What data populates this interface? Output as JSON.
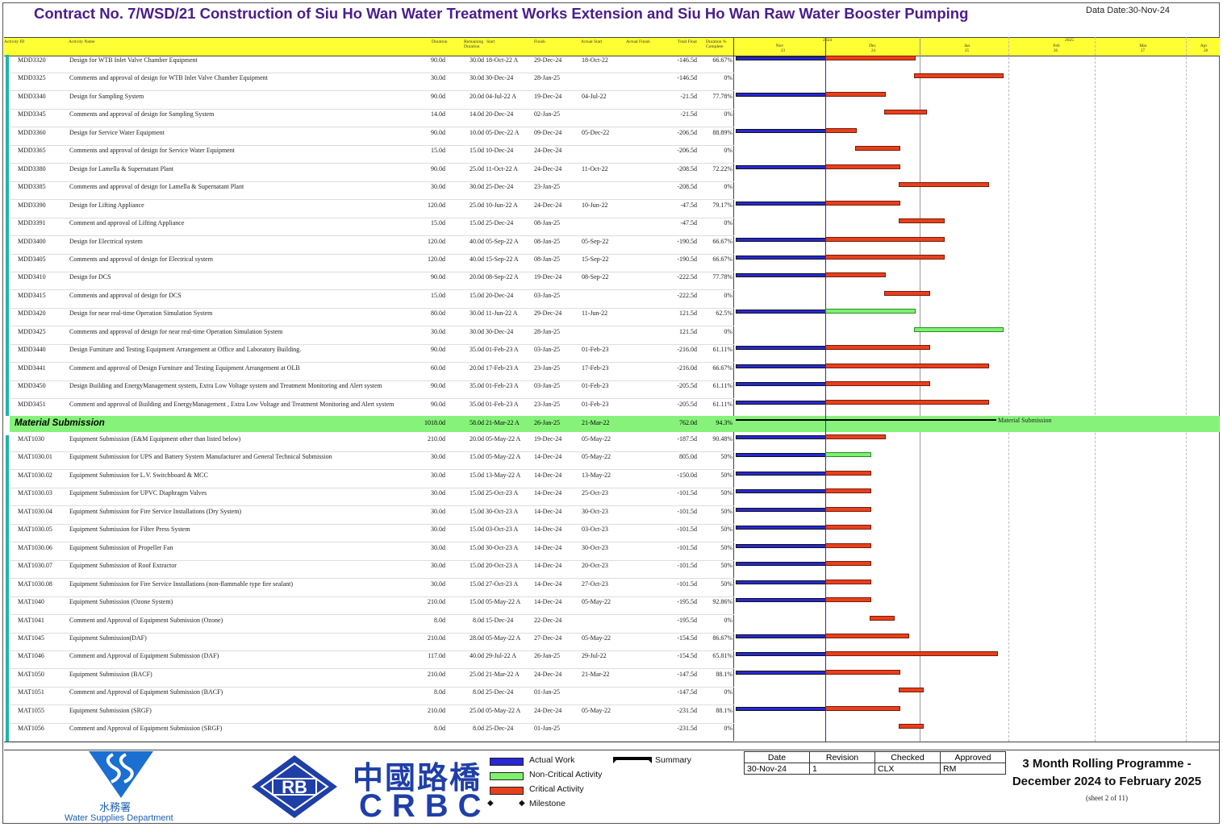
{
  "header": {
    "title": "Contract No. 7/WSD/21 Construction of Siu Ho Wan Water Treatment Works Extension and Siu Ho Wan Raw Water Booster Pumping",
    "data_date": "Data Date:30-Nov-24"
  },
  "columns": {
    "activity_id": "Activity ID",
    "activity_name": "Activity Name",
    "duration": "Duration",
    "remaining_duration": "Remaining Duration",
    "start": "Start",
    "finish": "Finish",
    "actual_start": "Actual Start",
    "actual_finish": "Actual Finish",
    "total_float": "Total Float",
    "duration_pct": "Duration % Complete"
  },
  "timeline": {
    "years": [
      "2024",
      "2025"
    ],
    "months": [
      "Nov",
      "Dec",
      "Jan",
      "Feb",
      "Mar",
      "Apr"
    ],
    "weeks": [
      "23",
      "24",
      "25",
      "26",
      "27",
      "28"
    ]
  },
  "rows": [
    {
      "id": "MDD3320",
      "name": "Design for WTB Inlet Valve Chamber Equipment",
      "dur": "90.0d",
      "rem": "30.0d",
      "start": "18-Oct-22 A",
      "finish": "29-Dec-24",
      "astart": "18-Oct-22",
      "afinish": "",
      "float": "-146.5d",
      "pct": "66.67%"
    },
    {
      "id": "MDD3325",
      "name": "Comments and approval of design for WTB Inlet Valve Chamber Equipment",
      "dur": "30.0d",
      "rem": "30.0d",
      "start": "30-Dec-24",
      "finish": "28-Jan-25",
      "astart": "",
      "afinish": "",
      "float": "-146.5d",
      "pct": "0%"
    },
    {
      "id": "MDD3340",
      "name": "Design for Sampling System",
      "dur": "90.0d",
      "rem": "20.0d",
      "start": "04-Jul-22 A",
      "finish": "19-Dec-24",
      "astart": "04-Jul-22",
      "afinish": "",
      "float": "-21.5d",
      "pct": "77.78%"
    },
    {
      "id": "MDD3345",
      "name": "Comments and approval of design for Sampling System",
      "dur": "14.0d",
      "rem": "14.0d",
      "start": "20-Dec-24",
      "finish": "02-Jan-25",
      "astart": "",
      "afinish": "",
      "float": "-21.5d",
      "pct": "0%"
    },
    {
      "id": "MDD3360",
      "name": "Design for Service Water Equipment",
      "dur": "90.0d",
      "rem": "10.0d",
      "start": "05-Dec-22 A",
      "finish": "09-Dec-24",
      "astart": "05-Dec-22",
      "afinish": "",
      "float": "-206.5d",
      "pct": "88.89%"
    },
    {
      "id": "MDD3365",
      "name": "Comments and approval of design for Service Water Equipment",
      "dur": "15.0d",
      "rem": "15.0d",
      "start": "10-Dec-24",
      "finish": "24-Dec-24",
      "astart": "",
      "afinish": "",
      "float": "-206.5d",
      "pct": "0%"
    },
    {
      "id": "MDD3380",
      "name": "Design for Lamella & Supernatant Plant",
      "dur": "90.0d",
      "rem": "25.0d",
      "start": "11-Oct-22 A",
      "finish": "24-Dec-24",
      "astart": "11-Oct-22",
      "afinish": "",
      "float": "-208.5d",
      "pct": "72.22%"
    },
    {
      "id": "MDD3385",
      "name": "Comments and approval of design for Lamella & Supernatant Plant",
      "dur": "30.0d",
      "rem": "30.0d",
      "start": "25-Dec-24",
      "finish": "23-Jan-25",
      "astart": "",
      "afinish": "",
      "float": "-208.5d",
      "pct": "0%"
    },
    {
      "id": "MDD3390",
      "name": "Design for Lifting Appliance",
      "dur": "120.0d",
      "rem": "25.0d",
      "start": "10-Jun-22 A",
      "finish": "24-Dec-24",
      "astart": "10-Jun-22",
      "afinish": "",
      "float": "-47.5d",
      "pct": "79.17%"
    },
    {
      "id": "MDD3391",
      "name": "Comment and approval of Lifting Appliance",
      "dur": "15.0d",
      "rem": "15.0d",
      "start": "25-Dec-24",
      "finish": "08-Jan-25",
      "astart": "",
      "afinish": "",
      "float": "-47.5d",
      "pct": "0%"
    },
    {
      "id": "MDD3400",
      "name": "Design for Electrical system",
      "dur": "120.0d",
      "rem": "40.0d",
      "start": "05-Sep-22 A",
      "finish": "08-Jan-25",
      "astart": "05-Sep-22",
      "afinish": "",
      "float": "-190.5d",
      "pct": "66.67%"
    },
    {
      "id": "MDD3405",
      "name": "Comments and approval of design for Electrical system",
      "dur": "120.0d",
      "rem": "40.0d",
      "start": "15-Sep-22 A",
      "finish": "08-Jan-25",
      "astart": "15-Sep-22",
      "afinish": "",
      "float": "-190.5d",
      "pct": "66.67%"
    },
    {
      "id": "MDD3410",
      "name": "Design for DCS",
      "dur": "90.0d",
      "rem": "20.0d",
      "start": "08-Sep-22 A",
      "finish": "19-Dec-24",
      "astart": "08-Sep-22",
      "afinish": "",
      "float": "-222.5d",
      "pct": "77.78%"
    },
    {
      "id": "MDD3415",
      "name": "Comments and approval of design for DCS",
      "dur": "15.0d",
      "rem": "15.0d",
      "start": "20-Dec-24",
      "finish": "03-Jan-25",
      "astart": "",
      "afinish": "",
      "float": "-222.5d",
      "pct": "0%"
    },
    {
      "id": "MDD3420",
      "name": "Design for near real-time Operation Simulation System",
      "dur": "80.0d",
      "rem": "30.0d",
      "start": "11-Jun-22 A",
      "finish": "29-Dec-24",
      "astart": "11-Jun-22",
      "afinish": "",
      "float": "121.5d",
      "pct": "62.5%"
    },
    {
      "id": "MDD3425",
      "name": "Comments and approval of design for near real-time Operation Simulation System",
      "dur": "30.0d",
      "rem": "30.0d",
      "start": "30-Dec-24",
      "finish": "28-Jan-25",
      "astart": "",
      "afinish": "",
      "float": "121.5d",
      "pct": "0%"
    },
    {
      "id": "MDD3440",
      "name": "Design Furniture and Testing Equipment Arrangement at Office and Laboratory Building.",
      "dur": "90.0d",
      "rem": "35.0d",
      "start": "01-Feb-23 A",
      "finish": "03-Jan-25",
      "astart": "01-Feb-23",
      "afinish": "",
      "float": "-216.0d",
      "pct": "61.11%"
    },
    {
      "id": "MDD3441",
      "name": "Comment and approval of Design Furniture and Testing Equipment Arrangement at OLB",
      "dur": "60.0d",
      "rem": "20.0d",
      "start": "17-Feb-23 A",
      "finish": "23-Jan-25",
      "astart": "17-Feb-23",
      "afinish": "",
      "float": "-216.0d",
      "pct": "66.67%"
    },
    {
      "id": "MDD3450",
      "name": "Design Building and EnergyManagement system, Extra Low Voltage system and Treatment Monitoring and Alert system",
      "dur": "90.0d",
      "rem": "35.0d",
      "start": "01-Feb-23 A",
      "finish": "03-Jan-25",
      "astart": "01-Feb-23",
      "afinish": "",
      "float": "-205.5d",
      "pct": "61.11%"
    },
    {
      "id": "MDD3451",
      "name": "Comment and approval of Building and EnergyManagement , Extra Low Voltage and Treatment Monitoring and Alert system",
      "dur": "90.0d",
      "rem": "35.0d",
      "start": "01-Feb-23 A",
      "finish": "23-Jan-25",
      "astart": "01-Feb-23",
      "afinish": "",
      "float": "-205.5d",
      "pct": "61.11%"
    }
  ],
  "group": {
    "name": "Material Submission",
    "dur": "1018.0d",
    "rem": "58.0d",
    "start": "21-Mar-22 A",
    "finish": "26-Jan-25",
    "astart": "21-Mar-22",
    "float": "762.0d",
    "pct": "94.3%",
    "bar_label": "Material Submission"
  },
  "rows2": [
    {
      "id": "MAT1030",
      "name": "Equipment Submission (E&M Equipment other than listed below)",
      "dur": "210.0d",
      "rem": "20.0d",
      "start": "05-May-22 A",
      "finish": "19-Dec-24",
      "astart": "05-May-22",
      "float": "-187.5d",
      "pct": "90.48%"
    },
    {
      "id": "MAT1030.01",
      "name": "Equipment Submission for UPS and Battery System Manufacturer and General Technical Submission",
      "dur": "30.0d",
      "rem": "15.0d",
      "start": "05-May-22 A",
      "finish": "14-Dec-24",
      "astart": "05-May-22",
      "float": "805.0d",
      "pct": "50%"
    },
    {
      "id": "MAT1030.02",
      "name": "Equipment Submission for L.V. Switchboard & MCC",
      "dur": "30.0d",
      "rem": "15.0d",
      "start": "13-May-22 A",
      "finish": "14-Dec-24",
      "astart": "13-May-22",
      "float": "-150.0d",
      "pct": "50%"
    },
    {
      "id": "MAT1030.03",
      "name": "Equipment Submission for UPVC Diaphragm Valves",
      "dur": "30.0d",
      "rem": "15.0d",
      "start": "25-Oct-23 A",
      "finish": "14-Dec-24",
      "astart": "25-Oct-23",
      "float": "-101.5d",
      "pct": "50%"
    },
    {
      "id": "MAT1030.04",
      "name": "Equipment Submission for Fire Service Installations (Dry System)",
      "dur": "30.0d",
      "rem": "15.0d",
      "start": "30-Oct-23 A",
      "finish": "14-Dec-24",
      "astart": "30-Oct-23",
      "float": "-101.5d",
      "pct": "50%"
    },
    {
      "id": "MAT1030.05",
      "name": "Equipment Submission for Filter Press System",
      "dur": "30.0d",
      "rem": "15.0d",
      "start": "03-Oct-23 A",
      "finish": "14-Dec-24",
      "astart": "03-Oct-23",
      "float": "-101.5d",
      "pct": "50%"
    },
    {
      "id": "MAT1030.06",
      "name": "Equipment Submission of Propeller Fan",
      "dur": "30.0d",
      "rem": "15.0d",
      "start": "30-Oct-23 A",
      "finish": "14-Dec-24",
      "astart": "30-Oct-23",
      "float": "-101.5d",
      "pct": "50%"
    },
    {
      "id": "MAT1030.07",
      "name": "Equipment Submission of Roof Extractor",
      "dur": "30.0d",
      "rem": "15.0d",
      "start": "20-Oct-23 A",
      "finish": "14-Dec-24",
      "astart": "20-Oct-23",
      "float": "-101.5d",
      "pct": "50%"
    },
    {
      "id": "MAT1030.08",
      "name": "Equipment Submission for Fire Service Installations (non-flammable type fire sealant)",
      "dur": "30.0d",
      "rem": "15.0d",
      "start": "27-Oct-23 A",
      "finish": "14-Dec-24",
      "astart": "27-Oct-23",
      "float": "-101.5d",
      "pct": "50%"
    },
    {
      "id": "MAT1040",
      "name": "Equipment Submission (Ozone System)",
      "dur": "210.0d",
      "rem": "15.0d",
      "start": "05-May-22 A",
      "finish": "14-Dec-24",
      "astart": "05-May-22",
      "float": "-195.5d",
      "pct": "92.86%"
    },
    {
      "id": "MAT1041",
      "name": "Comment and Approval of Equipment Submission (Ozone)",
      "dur": "8.0d",
      "rem": "8.0d",
      "start": "15-Dec-24",
      "finish": "22-Dec-24",
      "astart": "",
      "float": "-195.5d",
      "pct": "0%"
    },
    {
      "id": "MAT1045",
      "name": "Equipment Submission(DAF)",
      "dur": "210.0d",
      "rem": "28.0d",
      "start": "05-May-22 A",
      "finish": "27-Dec-24",
      "astart": "05-May-22",
      "float": "-154.5d",
      "pct": "86.67%"
    },
    {
      "id": "MAT1046",
      "name": "Comment and Approval of Equipment Submission (DAF)",
      "dur": "117.0d",
      "rem": "40.0d",
      "start": "29-Jul-22 A",
      "finish": "26-Jan-25",
      "astart": "29-Jul-22",
      "float": "-154.5d",
      "pct": "65.81%"
    },
    {
      "id": "MAT1050",
      "name": "Equipment Submission (BACF)",
      "dur": "210.0d",
      "rem": "25.0d",
      "start": "21-Mar-22 A",
      "finish": "24-Dec-24",
      "astart": "21-Mar-22",
      "float": "-147.5d",
      "pct": "88.1%"
    },
    {
      "id": "MAT1051",
      "name": "Comment and Approval of Equipment Submission (BACF)",
      "dur": "8.0d",
      "rem": "8.0d",
      "start": "25-Dec-24",
      "finish": "01-Jan-25",
      "astart": "",
      "float": "-147.5d",
      "pct": "0%"
    },
    {
      "id": "MAT1055",
      "name": "Equipment Submission (SRGF)",
      "dur": "210.0d",
      "rem": "25.0d",
      "start": "05-May-22 A",
      "finish": "24-Dec-24",
      "astart": "05-May-22",
      "float": "-231.5d",
      "pct": "88.1%"
    },
    {
      "id": "MAT1056",
      "name": "Comment and Approval of Equipment Submission (SRGF)",
      "dur": "8.0d",
      "rem": "8.0d",
      "start": "25-Dec-24",
      "finish": "01-Jan-25",
      "astart": "",
      "float": "-231.5d",
      "pct": "0%"
    }
  ],
  "legend": {
    "actual_work": "Actual Work",
    "non_critical": "Non-Critical Activity",
    "critical": "Critical Activity",
    "milestone": "Milestone",
    "summary": "Summary"
  },
  "logos": {
    "wsd_cn": "水務署",
    "wsd_en": "Water Supplies Department",
    "rb": "RB",
    "crbc_cn": "中國路橋",
    "crbc_en": "CRBC"
  },
  "revision": {
    "headers": [
      "Date",
      "Revision",
      "Checked",
      "Approved"
    ],
    "values": [
      "30-Nov-24",
      "1",
      "CLX",
      "RM"
    ]
  },
  "programme": {
    "title_line1": "3 Month Rolling Programme -",
    "title_line2": "December 2024 to February 2025",
    "sheet": "(sheet 2 of 11)"
  },
  "colors": {
    "actual": "#2727d8",
    "critical": "#e8401c",
    "noncritical": "#7ef06e",
    "group_band": "#86f27a",
    "header_band": "#ffff33",
    "title": "#4b1d8f"
  }
}
